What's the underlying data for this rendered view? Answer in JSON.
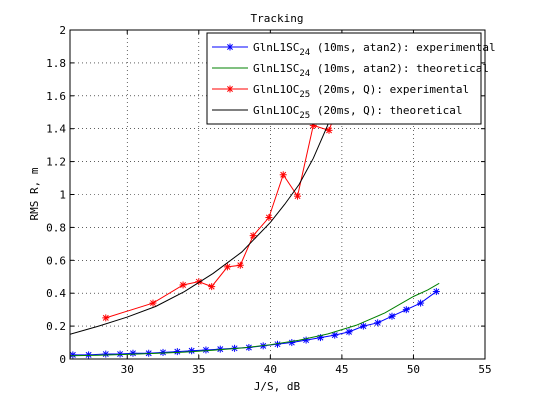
{
  "chart_data": {
    "type": "line",
    "title": "Tracking",
    "xlabel": "J/S, dB",
    "ylabel": "RMS R, m",
    "xlim": [
      26,
      55
    ],
    "ylim": [
      0,
      2
    ],
    "grid": true,
    "legend_position": "top-right",
    "xticks": [
      30,
      35,
      40,
      45,
      50,
      55
    ],
    "yticks": [
      0,
      0.2,
      0.4,
      0.6,
      0.8,
      1,
      1.2,
      1.4,
      1.6,
      1.8,
      2
    ],
    "series": [
      {
        "name_main": "GlnL1SC",
        "name_sub": "24",
        "name_rest": " (10ms, atan2): experimental",
        "color": "#0000ff",
        "marker": "star",
        "line": "solid",
        "x": [
          26.2,
          27.3,
          28.5,
          29.5,
          30.4,
          31.5,
          32.5,
          33.5,
          34.5,
          35.5,
          36.5,
          37.5,
          38.5,
          39.5,
          40.5,
          41.5,
          42.5,
          43.5,
          44.5,
          45.5,
          46.5,
          47.5,
          48.5,
          49.5,
          50.5,
          51.6
        ],
        "y": [
          0.025,
          0.025,
          0.03,
          0.03,
          0.035,
          0.035,
          0.04,
          0.045,
          0.05,
          0.055,
          0.06,
          0.065,
          0.07,
          0.08,
          0.09,
          0.1,
          0.115,
          0.13,
          0.145,
          0.165,
          0.2,
          0.22,
          0.26,
          0.3,
          0.34,
          0.41
        ]
      },
      {
        "name_main": "GlnL1SC",
        "name_sub": "24",
        "name_rest": " (10ms, atan2): theoretical",
        "color": "#008000",
        "marker": "none",
        "line": "solid",
        "x": [
          26,
          28,
          30,
          32,
          34,
          36,
          38,
          40,
          42,
          44,
          46,
          48,
          50,
          51,
          51.8
        ],
        "y": [
          0.02,
          0.023,
          0.028,
          0.034,
          0.042,
          0.053,
          0.067,
          0.087,
          0.114,
          0.152,
          0.205,
          0.28,
          0.38,
          0.42,
          0.46
        ]
      },
      {
        "name_main": "GlnL1OC",
        "name_sub": "25",
        "name_rest": " (20ms, Q): experimental",
        "color": "#ff0000",
        "marker": "star",
        "line": "solid",
        "x": [
          28.5,
          31.8,
          33.9,
          35,
          35.9,
          37,
          37.9,
          38.8,
          39.9,
          40.9,
          41.9,
          43,
          44.1,
          45
        ],
        "y": [
          0.25,
          0.34,
          0.45,
          0.47,
          0.44,
          0.56,
          0.57,
          0.75,
          0.86,
          1.12,
          0.99,
          1.42,
          1.39,
          1.6
        ]
      },
      {
        "name_main": "GlnL1OC",
        "name_sub": "25",
        "name_rest": " (20ms, Q): theoretical",
        "color": "#000000",
        "marker": "none",
        "line": "solid",
        "x": [
          26,
          28,
          30,
          32,
          34,
          36,
          38,
          40,
          41,
          42,
          43,
          44,
          44.6
        ],
        "y": [
          0.15,
          0.2,
          0.255,
          0.32,
          0.41,
          0.52,
          0.65,
          0.83,
          0.94,
          1.06,
          1.22,
          1.42,
          1.6
        ]
      }
    ]
  }
}
